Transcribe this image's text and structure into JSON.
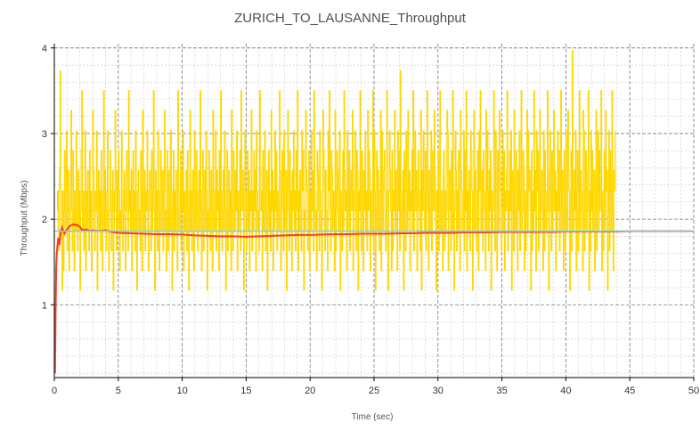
{
  "chart_data": {
    "type": "line",
    "title": "ZURICH_TO_LAUSANNE_Throughput",
    "xlabel": "Time (sec)",
    "ylabel": "Throughput (Mbps)",
    "xlim": [
      0,
      50
    ],
    "ylim": [
      0.15,
      4.05
    ],
    "x_ticks": [
      0,
      5,
      10,
      15,
      20,
      25,
      30,
      35,
      40,
      45,
      50
    ],
    "y_ticks": [
      1,
      2,
      3,
      4
    ],
    "x_tick_labels": [
      "0",
      "5",
      "10",
      "15",
      "20",
      "25",
      "30",
      "35",
      "40",
      "45",
      "50"
    ],
    "y_tick_labels": [
      "1",
      "2",
      "3",
      "4"
    ],
    "grid": true,
    "legend": "none",
    "colors": {
      "instantaneous": "#FFD700",
      "cumulative_average": "#FF3B1F",
      "mean": "#7FD3D8",
      "grid_major": "#7a7a7a",
      "grid_minor": "#c8c8c8",
      "axis": "#000000"
    },
    "series": [
      {
        "key": "instantaneous",
        "style": "step",
        "x_start": 0.2,
        "x_step": 0.05,
        "levels": [
          0.7,
          0.93,
          1.17,
          1.4,
          1.63,
          1.87,
          2.1,
          2.33,
          2.57,
          2.8,
          3.03,
          3.27,
          3.5,
          3.73,
          3.97
        ],
        "level_index": [
          6,
          7,
          5,
          4,
          8,
          13,
          7,
          5,
          2,
          7,
          3,
          6,
          9,
          5,
          7,
          10,
          4,
          6,
          8,
          3,
          5,
          7,
          11,
          6,
          4,
          9,
          6,
          3,
          7,
          5,
          10,
          6,
          4,
          8,
          5,
          7,
          2,
          6,
          9,
          12,
          5,
          7,
          4,
          6,
          10,
          3,
          7,
          5,
          8,
          6,
          4,
          9,
          5,
          7,
          3,
          6,
          11,
          8,
          5,
          4,
          7,
          6,
          10,
          2,
          6,
          8,
          5,
          7,
          4,
          9,
          6,
          3,
          7,
          12,
          5,
          8,
          6,
          4,
          7,
          10,
          5,
          3,
          6,
          9,
          7,
          4,
          6,
          8,
          2,
          5,
          7,
          11,
          6,
          4,
          8,
          5,
          9,
          7,
          3,
          6,
          5,
          10,
          7,
          4,
          6,
          8,
          5,
          3,
          7,
          9,
          6,
          4,
          12,
          6,
          7,
          5,
          8,
          3,
          6,
          9,
          5,
          7,
          4,
          10,
          6,
          2,
          7,
          8,
          5,
          6,
          4,
          9,
          7,
          3,
          11,
          6,
          5,
          8,
          4,
          7,
          6,
          10,
          5,
          3,
          7,
          8,
          6,
          4,
          9,
          5,
          7,
          12,
          6,
          2,
          8,
          5,
          7,
          4,
          10,
          6,
          3,
          7,
          9,
          5,
          6,
          8,
          4,
          7,
          11,
          5,
          6,
          3,
          9,
          7,
          4,
          8,
          6,
          5,
          10,
          7,
          2,
          6,
          9,
          4,
          7,
          5,
          8,
          6,
          3,
          12,
          7,
          5,
          6,
          9,
          4,
          8,
          6,
          10,
          3,
          7,
          5,
          6,
          8,
          4,
          9,
          7,
          2,
          6,
          11,
          5,
          7,
          4,
          8,
          6,
          3,
          10,
          7,
          5,
          9,
          6,
          4,
          7,
          8,
          5,
          12,
          6,
          3,
          7,
          9,
          4,
          6,
          8,
          5,
          10,
          7,
          2,
          6,
          5,
          9,
          7,
          4,
          8,
          6,
          3,
          11,
          7,
          5,
          6,
          10,
          4,
          8,
          6,
          7,
          3,
          9,
          5,
          12,
          6,
          4,
          7,
          8,
          5,
          10,
          6,
          2,
          7,
          9,
          4,
          6,
          8,
          5,
          7,
          3,
          11,
          6,
          4,
          9,
          7,
          5,
          8,
          6,
          10,
          3,
          7,
          5,
          6,
          9,
          4,
          12,
          7,
          6,
          8,
          2,
          5,
          10,
          7,
          4,
          6,
          9,
          5,
          8,
          3,
          7,
          6,
          11,
          4,
          7,
          5,
          9,
          6,
          8,
          3,
          10,
          7,
          5,
          6,
          4,
          12,
          8,
          6,
          7,
          3,
          9,
          5,
          6,
          10,
          4,
          7,
          8,
          2,
          6,
          9,
          5,
          7,
          4,
          11,
          6,
          8,
          3,
          7,
          5,
          10,
          6,
          9,
          4,
          7,
          6,
          5,
          12,
          8,
          3,
          6,
          9,
          7,
          4,
          10,
          5,
          6,
          8,
          2,
          7,
          11,
          6,
          4,
          9,
          5,
          7,
          3,
          8,
          6,
          10,
          5,
          7,
          4,
          9,
          6,
          12,
          3,
          7,
          5,
          8,
          6,
          4,
          10,
          7,
          9,
          2,
          6,
          5,
          11,
          8,
          7,
          4,
          6,
          9,
          3,
          7,
          5,
          10,
          6,
          8,
          4,
          12,
          7,
          5,
          6,
          3,
          9,
          8,
          6,
          4,
          10,
          7,
          5,
          2,
          6,
          11,
          9,
          7,
          4,
          8,
          6,
          5,
          3,
          10,
          7,
          12,
          6,
          4,
          9,
          8,
          5,
          7,
          6,
          3,
          11,
          4,
          7,
          9,
          6,
          5,
          8,
          10,
          2,
          7,
          6,
          4,
          9,
          5,
          12,
          8,
          6,
          7,
          3,
          10,
          5,
          6,
          9,
          4,
          7,
          8,
          6,
          11,
          3,
          5,
          7,
          10,
          6,
          4,
          9,
          8,
          2,
          7,
          6,
          12,
          5,
          4,
          9,
          7,
          3,
          8,
          6,
          10,
          5,
          7,
          4,
          11,
          6,
          9,
          8,
          3,
          7,
          5,
          6,
          12,
          4,
          10,
          7,
          2,
          6,
          9,
          5,
          8,
          6,
          4,
          7,
          11,
          3,
          10,
          6,
          5,
          8,
          9,
          7,
          4,
          6,
          12,
          5,
          2,
          7,
          10,
          8,
          6,
          3,
          9,
          4,
          7,
          6,
          11,
          5,
          8,
          7,
          3,
          10,
          6,
          9,
          4,
          13,
          7,
          5,
          6,
          8,
          2,
          9,
          6,
          4,
          10,
          7,
          5,
          11,
          6,
          8,
          3,
          7,
          6,
          9,
          5,
          12,
          4,
          7,
          10,
          6,
          8,
          3,
          5,
          9,
          7,
          6,
          4,
          11,
          2,
          8,
          6,
          10,
          7,
          5,
          9,
          4,
          6,
          12,
          7,
          3,
          8,
          5,
          6,
          10,
          4,
          9,
          7,
          6,
          11,
          8,
          5,
          2,
          7,
          6,
          9,
          4,
          10,
          12,
          5,
          7,
          6,
          3,
          8,
          9,
          4,
          7,
          5,
          6,
          11,
          10,
          3,
          7,
          8,
          6,
          4,
          9,
          5,
          12,
          7,
          2,
          6,
          10,
          8,
          4,
          7,
          5,
          9,
          6,
          3,
          11,
          8,
          7,
          5,
          6,
          10,
          4,
          9,
          6,
          12,
          3,
          7,
          5,
          8,
          6,
          4,
          10,
          9,
          7,
          2,
          6,
          11,
          5,
          8,
          7,
          4,
          6,
          9,
          3,
          10,
          7,
          12,
          5,
          6,
          8,
          4,
          9,
          7,
          6,
          3,
          11,
          5,
          10,
          7,
          4,
          8,
          6,
          9,
          2,
          7,
          5,
          6,
          12,
          8,
          4,
          10,
          7,
          3,
          9,
          6,
          5,
          11,
          8,
          7,
          4,
          6,
          10,
          5,
          9,
          3,
          7,
          6,
          8,
          12,
          4,
          7,
          5,
          9,
          6,
          10,
          2,
          8,
          7,
          4,
          11,
          6,
          5,
          9,
          7,
          3,
          8,
          6,
          10,
          4,
          7,
          12,
          5,
          6,
          9,
          8,
          3,
          7,
          4,
          6,
          11,
          5,
          10,
          7,
          8,
          6,
          2,
          9,
          4,
          7,
          5,
          12,
          6,
          8,
          3,
          10,
          7,
          9,
          4,
          6,
          11,
          5,
          7,
          8,
          6,
          3,
          10,
          4,
          9,
          7,
          5,
          6,
          12,
          8,
          2,
          7,
          10,
          6,
          4,
          9,
          5,
          7,
          11,
          6,
          8,
          3,
          7,
          5,
          10,
          6,
          9,
          4,
          7,
          12,
          5,
          8,
          6,
          3,
          9,
          7,
          4,
          10,
          6,
          5,
          11,
          8,
          7,
          2,
          6,
          9,
          4,
          14,
          7,
          5,
          8,
          6,
          10,
          3,
          7,
          9,
          4,
          6,
          12,
          5,
          8,
          7,
          6,
          3,
          11,
          10,
          4,
          7,
          9,
          5,
          6,
          8,
          12,
          2,
          7,
          4,
          10,
          6,
          9,
          5,
          7,
          8,
          3,
          6,
          11,
          4,
          7,
          10,
          5,
          9,
          6,
          8,
          12,
          3,
          7,
          4,
          6,
          9,
          5,
          11,
          7,
          8,
          2,
          6,
          10,
          4,
          9,
          7,
          5,
          12,
          6,
          3,
          8,
          7,
          10
        ]
      },
      {
        "key": "cumulative_average",
        "style": "line",
        "x": [
          0.05,
          0.1,
          0.15,
          0.2,
          0.3,
          0.4,
          0.5,
          0.6,
          0.8,
          1.0,
          1.2,
          1.5,
          1.8,
          2.0,
          2.2,
          2.5,
          2.8,
          3.0,
          3.5,
          4.0,
          4.5,
          5,
          6,
          7,
          8,
          9,
          10,
          11,
          12,
          13,
          14,
          15,
          16,
          17,
          18,
          19,
          20,
          21,
          22,
          23,
          24,
          25,
          26,
          27,
          28,
          29,
          30,
          31,
          32,
          33,
          34,
          35,
          36,
          37,
          38,
          39,
          40,
          41,
          42,
          43,
          44,
          45,
          46,
          47,
          48,
          49,
          50
        ],
        "y": [
          0.2,
          0.9,
          1.45,
          1.62,
          1.78,
          1.7,
          1.85,
          1.9,
          1.83,
          1.88,
          1.92,
          1.94,
          1.93,
          1.91,
          1.87,
          1.88,
          1.86,
          1.87,
          1.86,
          1.87,
          1.85,
          1.84,
          1.835,
          1.83,
          1.825,
          1.825,
          1.82,
          1.81,
          1.805,
          1.8,
          1.8,
          1.795,
          1.8,
          1.805,
          1.81,
          1.815,
          1.815,
          1.82,
          1.825,
          1.825,
          1.83,
          1.83,
          1.83,
          1.835,
          1.835,
          1.84,
          1.84,
          1.84,
          1.845,
          1.845,
          1.845,
          1.85,
          1.85,
          1.85,
          1.85,
          1.85,
          1.855,
          1.855,
          1.855,
          1.855,
          1.855,
          1.86,
          1.86,
          1.86,
          1.86,
          1.86,
          1.86
        ]
      },
      {
        "key": "mean",
        "style": "hline",
        "y": 1.86,
        "x_range": [
          0,
          50
        ]
      }
    ]
  }
}
